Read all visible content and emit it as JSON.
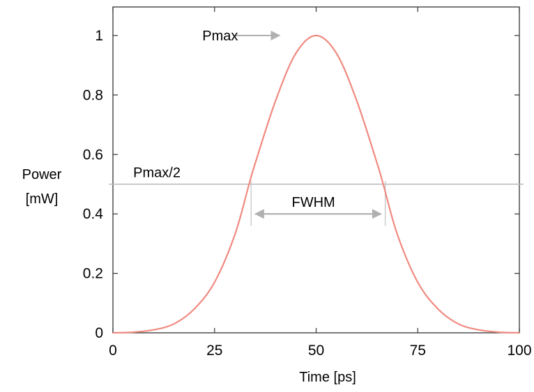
{
  "chart_data": {
    "type": "line",
    "title": "",
    "xlabel": "Time [ps]",
    "ylabel_lines": [
      "Power",
      "[mW]"
    ],
    "xlim": [
      0,
      100
    ],
    "ylim": [
      0,
      1.1
    ],
    "xticks": [
      0,
      25,
      50,
      75,
      100
    ],
    "xtick_labels": [
      "0",
      "25",
      "50",
      "75",
      "100"
    ],
    "yticks": [
      0,
      0.2,
      0.4,
      0.6,
      0.8,
      1
    ],
    "ytick_labels": [
      "0",
      "0.2",
      "0.4",
      "0.6",
      "0.8",
      "1"
    ],
    "grid": false,
    "legend": "none",
    "series": [
      {
        "color": "#f08a80",
        "x": [
          0,
          5,
          10,
          15,
          20,
          25,
          30,
          33.5,
          35,
          40,
          45,
          50,
          55,
          60,
          65,
          66.5,
          70,
          75,
          80,
          85,
          90,
          95,
          100
        ],
        "y": [
          0.0,
          0.002,
          0.01,
          0.03,
          0.08,
          0.17,
          0.33,
          0.5,
          0.57,
          0.78,
          0.94,
          1.0,
          0.94,
          0.78,
          0.57,
          0.5,
          0.33,
          0.17,
          0.08,
          0.03,
          0.01,
          0.002,
          0.0
        ]
      }
    ],
    "annotations": {
      "pmax": {
        "label": "Pmax",
        "x": 22,
        "y": 1.0,
        "arrow_from_x": 30,
        "arrow_to_x": 41
      },
      "half": {
        "label": "Pmax/2",
        "x": 5,
        "y": 0.5,
        "line_y": 0.5,
        "line_from_x": -1,
        "line_to_x": 101
      },
      "fwhm": {
        "label": "FWHM",
        "x": 44,
        "y": 0.44,
        "x1": 34,
        "x2": 67,
        "arrow_y": 0.4,
        "vline_top": 0.51,
        "vline_bottom": 0.36
      }
    },
    "colors": {
      "curve": "#f08a80",
      "annotation_line": "#b8b8b8",
      "frame": "#333333"
    }
  }
}
